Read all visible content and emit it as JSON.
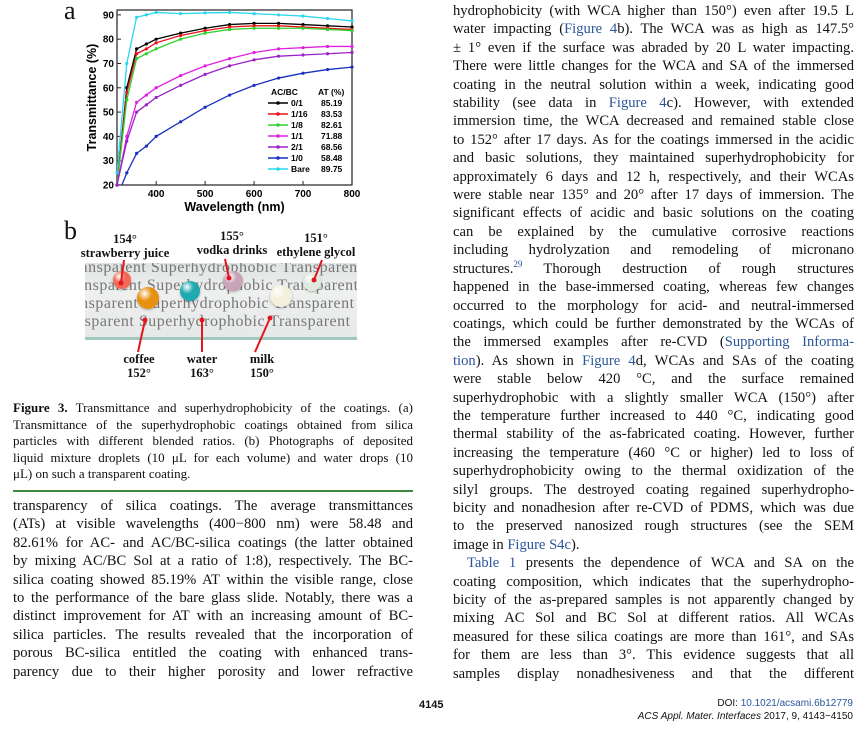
{
  "figure": {
    "panel_a_letter": "a",
    "panel_b_letter": "b",
    "caption_lines": [
      [
        {
          "b": "Figure 3."
        },
        " Transmittance and superhydrophobicity of the coatings. (a)"
      ],
      [
        "Transmittance of the superhydrophobic coatings obtained from silica"
      ],
      [
        "particles with different blended ratios. (b) Photographs of deposited"
      ],
      [
        "liquid mixture droplets (10 μL for each volume) and water drops (10"
      ],
      [
        "μL) on such a transparent coating."
      ]
    ],
    "photo": {
      "background_text": "Transparent Superhydrophobic Transparent",
      "droplets": [
        {
          "name": "strawberry juice",
          "angle": "154°",
          "color": "#f26a55"
        },
        {
          "name": "vodka drinks",
          "angle": "155°",
          "color": "#c9a3b8"
        },
        {
          "name": "ethylene glycol",
          "angle": "151°",
          "color": "#dfe9e0"
        },
        {
          "name": "coffee",
          "angle": "152°",
          "color": "#e8900f"
        },
        {
          "name": "water",
          "angle": "163°",
          "color": "#1fa9b0"
        },
        {
          "name": "milk",
          "angle": "150°",
          "color": "#f3f1dc"
        }
      ]
    }
  },
  "chart_data": {
    "type": "line",
    "title": "",
    "xlabel": "Wavelength (nm)",
    "ylabel": "Transmittance (%)",
    "xlim": [
      320,
      800
    ],
    "ylim": [
      20,
      92
    ],
    "xticks": [
      400,
      500,
      600,
      700,
      800
    ],
    "yticks": [
      20,
      30,
      40,
      50,
      60,
      70,
      80,
      90
    ],
    "grid": false,
    "legend_placement": "bottom-right",
    "legend_header": [
      "AC/BC",
      "AT (%)"
    ],
    "x": [
      320,
      340,
      360,
      380,
      400,
      450,
      500,
      550,
      600,
      650,
      700,
      750,
      800
    ],
    "series": [
      {
        "name": "0/1",
        "at": "85.19",
        "color": "#000000",
        "values": [
          20,
          60,
          76,
          78,
          80,
          82.5,
          84.5,
          86,
          86.5,
          86.5,
          86,
          85.5,
          85
        ]
      },
      {
        "name": "1/16",
        "at": "83.53",
        "color": "#e8141a",
        "values": [
          20,
          58,
          74,
          76,
          78.5,
          81.5,
          83.5,
          85,
          85.5,
          85.5,
          85,
          84.5,
          84
        ]
      },
      {
        "name": "1/8",
        "at": "82.61",
        "color": "#2fd12f",
        "values": [
          20,
          55,
          72,
          74,
          76,
          80,
          82.5,
          84,
          84.5,
          84.5,
          84.5,
          84,
          83.5
        ]
      },
      {
        "name": "1/1",
        "at": "71.88",
        "color": "#e020e0",
        "values": [
          20,
          40,
          54,
          57,
          60,
          65,
          69,
          72,
          74.5,
          76,
          76.5,
          77,
          77
        ]
      },
      {
        "name": "2/1",
        "at": "68.56",
        "color": "#9a22c8",
        "values": [
          20,
          38,
          50,
          53,
          56,
          61,
          65.5,
          69,
          71.5,
          73,
          73.5,
          74,
          74.5
        ]
      },
      {
        "name": "1/0",
        "at": "58.48",
        "color": "#1a2fc0",
        "values": [
          15,
          25,
          33,
          36,
          40,
          46,
          52,
          57,
          61,
          64,
          66,
          67.5,
          68.5
        ]
      },
      {
        "name": "Bare",
        "at": "89.75",
        "color": "#2ad6ec",
        "values": [
          25,
          70,
          89,
          90,
          91,
          90.5,
          90.8,
          91,
          90.5,
          90,
          89.5,
          88.5,
          87.5
        ]
      }
    ]
  },
  "left_column": [
    [
      "transparency of silica coatings. The average transmittances"
    ],
    [
      "(ATs) at visible wavelengths (400−800 nm) were 58.48 and"
    ],
    [
      "82.61% for AC- and AC/BC-silica coatings (the latter obtained"
    ],
    [
      "by mixing AC/BC Sol at a ratio of 1:8), respectively. The BC-"
    ],
    [
      "silica coating showed 85.19% AT within the visible range, close"
    ],
    [
      "to the performance of the bare glass slide. Notably, there was a"
    ],
    [
      "distinct improvement for AT with an increasing amount of BC-"
    ],
    [
      "silica particles. The results revealed that the incorporation of"
    ],
    [
      "porous BC-silica entitled the coating with enhanced trans-"
    ],
    [
      "parency due to their higher porosity and lower refractive"
    ]
  ],
  "right_column": [
    [
      "hydrophobicity (with WCA higher than 150°) even after 19.5 L"
    ],
    [
      "water impacting (",
      {
        "link": "Figure 4"
      },
      "b). The WCA was as high as 147.5°"
    ],
    [
      "± 1° even if the surface was abraded by 20 L water impacting."
    ],
    [
      "There were little changes for the WCA and SA of the immersed"
    ],
    [
      "coating in the neutral solution within a week, indicating good"
    ],
    [
      "stability (see data in ",
      {
        "link": "Figure 4"
      },
      "c). However, with extended"
    ],
    [
      "immersion time, the WCA decreased and remained stable close"
    ],
    [
      "to 152° after 17 days. As for the coatings immersed in the acidic"
    ],
    [
      "and basic solutions, they maintained superhydrophobicity for"
    ],
    [
      "approximately 6 days and 12 h, respectively, and their WCAs"
    ],
    [
      "were stable near 135° and 20° after 17 days of immersion. The"
    ],
    [
      "significant effects of acidic and basic solutions on the coating"
    ],
    [
      "can be explained by the cumulative corrosive reactions"
    ],
    [
      "including hydrolyzation and remodeling of micronano"
    ],
    [
      "structures.",
      {
        "sup": "29"
      },
      " Thorough destruction of rough structures"
    ],
    [
      "happened in the base-immersed coating, whereas few changes"
    ],
    [
      "occurred to the morphology for acid- and neutral-immersed"
    ],
    [
      "coatings, which could be further demonstrated by the WCAs of"
    ],
    [
      "the immersed examples after re-CVD (",
      {
        "link": "Supporting Informa-"
      }
    ],
    [
      {
        "link": "tion"
      },
      "). As shown in ",
      {
        "link": "Figure 4"
      },
      "d, WCAs and SAs of the coating"
    ],
    [
      "were stable below 420 °C, and the surface remained"
    ],
    [
      "superhydrophobic with a slightly smaller WCA (150°) after"
    ],
    [
      "the temperature further increased to 440 °C, indicating good"
    ],
    [
      "thermal stability of the as-fabricated coating. However, further"
    ],
    [
      "increasing the temperature (460 °C or higher) led to loss of"
    ],
    [
      "superhydrophobicity owing to the thermal oxidization of the"
    ],
    [
      "silyl groups. The destroyed coating regained superhydropho-"
    ],
    [
      "bicity and nonadhesion after re-CVD of PDMS, which was due"
    ],
    [
      "to the preserved nanosized rough structures (see the SEM"
    ],
    [
      "image in ",
      {
        "link": "Figure S4c"
      },
      ")."
    ],
    [
      {
        "link": "Table 1"
      },
      " presents the dependence of WCA and SA on the"
    ],
    [
      "coating composition, which indicates that the superhydropho-"
    ],
    [
      "bicity of the as-prepared samples is not apparently changed by"
    ],
    [
      "mixing AC Sol and BC Sol at different ratios. All WCAs"
    ],
    [
      "measured for these silica coatings are more than 161°, and SAs"
    ],
    [
      "for them are less than 3°. This evidence suggests that all"
    ],
    [
      "samples display nonadhesiveness and that the different"
    ]
  ],
  "footer": {
    "page_number": "4145",
    "doi_label": "DOI:",
    "doi": "10.1021/acsami.6b12779",
    "citation_journal": "ACS Appl. Mater. Interfaces",
    "citation_rest": "2017, 9, 4143−4150"
  },
  "colors": {
    "link": "#2a5599",
    "rule": "#3f8a3f"
  }
}
